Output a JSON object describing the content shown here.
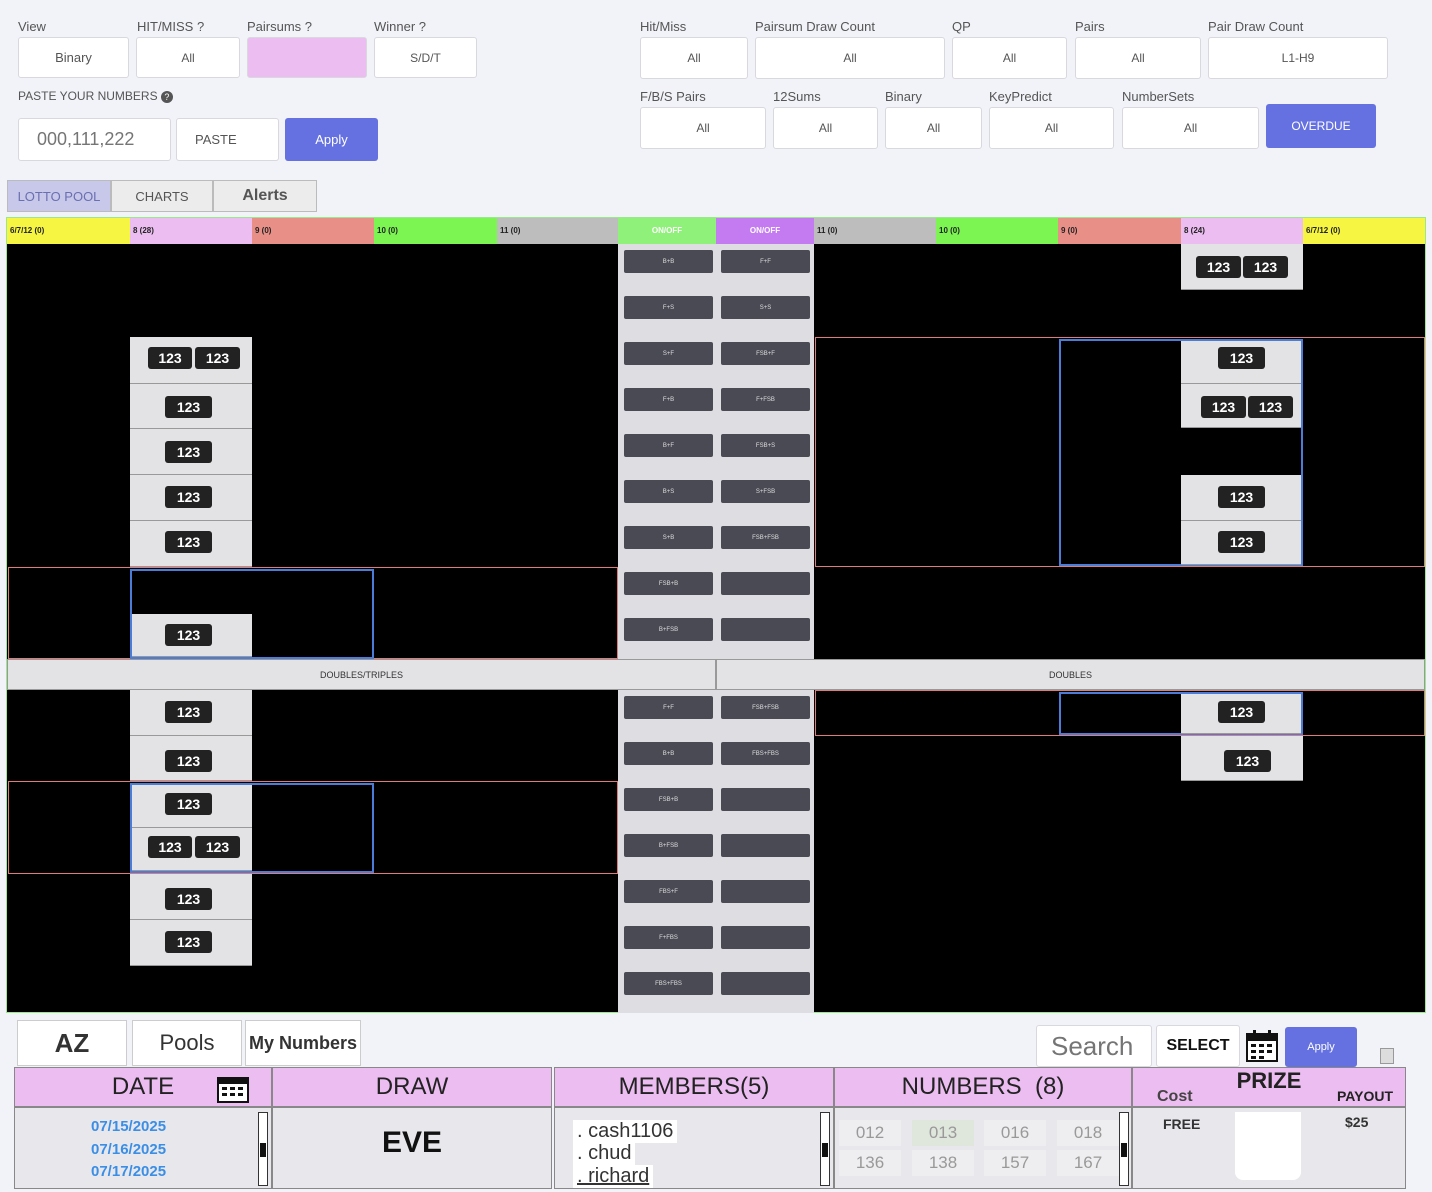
{
  "filters": {
    "view": {
      "label": "View",
      "value": "Binary"
    },
    "hitmiss_q": {
      "label": "HIT/MISS ?",
      "value": "All"
    },
    "pairsums_q": {
      "label": "Pairsums ?",
      "value": ""
    },
    "winner_q": {
      "label": "Winner ?",
      "value": "S/D/T"
    },
    "hitmiss": {
      "label": "Hit/Miss",
      "value": "All"
    },
    "pairsum_draw_count": {
      "label": "Pairsum Draw Count",
      "value": "All"
    },
    "qp": {
      "label": "QP",
      "value": "All"
    },
    "pairs": {
      "label": "Pairs",
      "value": "All"
    },
    "pair_draw_count": {
      "label": "Pair Draw Count",
      "value": "L1-H9"
    },
    "fbs_pairs": {
      "label": "F/B/S Pairs",
      "value": "All"
    },
    "sums12": {
      "label": "12Sums",
      "value": "All"
    },
    "binary": {
      "label": "Binary",
      "value": "All"
    },
    "keypredict": {
      "label": "KeyPredict",
      "value": "All"
    },
    "numbersets": {
      "label": "NumberSets",
      "value": "All"
    },
    "overdue": "OVERDUE"
  },
  "paste": {
    "label": "PASTE YOUR NUMBERS",
    "placeholder": "000,111,222",
    "paste_btn": "PASTE",
    "apply_btn": "Apply"
  },
  "tabs": [
    "LOTTO POOL",
    "CHARTS",
    "Alerts"
  ],
  "board": {
    "left_headers": [
      "6/7/12 (0)",
      "8 (28)",
      "9 (0)",
      "10 (0)",
      "11 (0)"
    ],
    "right_headers": [
      "11 (0)",
      "10 (0)",
      "9 (0)",
      "8 (24)",
      "6/7/12 (0)"
    ],
    "onoff": "ON/OFF",
    "pill": "123",
    "left_buttons": [
      "B+B",
      "F+S",
      "S+F",
      "F+B",
      "B+F",
      "B+S",
      "S+B",
      "FSB+B",
      "B+FSB"
    ],
    "right_buttons": [
      "F+F",
      "S+S",
      "FSB+F",
      "F+FSB",
      "FSB+S",
      "S+FSB",
      "FSB+FSB",
      "",
      ""
    ],
    "doubles_triples": "DOUBLES/TRIPLES",
    "doubles": "DOUBLES",
    "left_buttons2": [
      "F+F",
      "B+B",
      "FSB+B",
      "B+FSB",
      "FBS+F",
      "F+FBS",
      "FBS+FBS"
    ],
    "right_buttons2": [
      "FSB+FSB",
      "FBS+FBS",
      "",
      "",
      "",
      "",
      ""
    ]
  },
  "bottom": {
    "tabs": [
      "AZ",
      "Pools",
      "My Numbers"
    ],
    "search_placeholder": "Search",
    "select": "SELECT",
    "apply": "Apply",
    "date": {
      "title": "DATE",
      "items": [
        "07/15/2025",
        "07/16/2025",
        "07/17/2025"
      ]
    },
    "draw": {
      "title": "DRAW",
      "value": "EVE"
    },
    "members": {
      "title": "MEMBERS(5)",
      "items": [
        ". cash1106",
        ". chud",
        ". richard"
      ]
    },
    "numbers": {
      "title": "NUMBERS  (8)",
      "items": [
        "012",
        "013",
        "016",
        "018",
        "136",
        "138",
        "157",
        "167"
      ]
    },
    "prize": {
      "title": "PRIZE",
      "cost_label": "Cost",
      "cost_value": "FREE",
      "payout_label": "PAYOUT",
      "payout_value": "$25"
    }
  }
}
